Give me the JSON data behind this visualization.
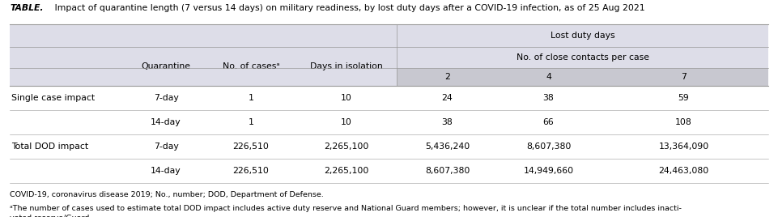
{
  "title_bold": "TABLE.",
  "title_rest": " Impact of quarantine length (7 versus 14 days) on military readiness, by lost duty days after a COVID-19 infection, as of 25 Aug 2021",
  "header_light_bg": "#dddde8",
  "header_medium_bg": "#d0d0d8",
  "header_dark_bg": "#c8c8d0",
  "rows": [
    [
      "Single case impact",
      "7-day",
      "1",
      "10",
      "24",
      "38",
      "59"
    ],
    [
      "",
      "14-day",
      "1",
      "10",
      "38",
      "66",
      "108"
    ],
    [
      "Total DOD impact",
      "7-day",
      "226,510",
      "2,265,100",
      "5,436,240",
      "8,607,380",
      "13,364,090"
    ],
    [
      "",
      "14-day",
      "226,510",
      "2,265,100",
      "8,607,380",
      "14,949,660",
      "24,463,080"
    ]
  ],
  "footnote1": "COVID-19, coronavirus disease 2019; No., number; DOD, Department of Defense.",
  "footnote2": "ᵃThe number of cases used to estimate total DOD impact includes active duty reserve and National Guard members; however, it is unclear if the total number includes inacti-\nvated reserve/Guard.",
  "fig_width": 9.61,
  "fig_height": 2.68,
  "dpi": 100
}
